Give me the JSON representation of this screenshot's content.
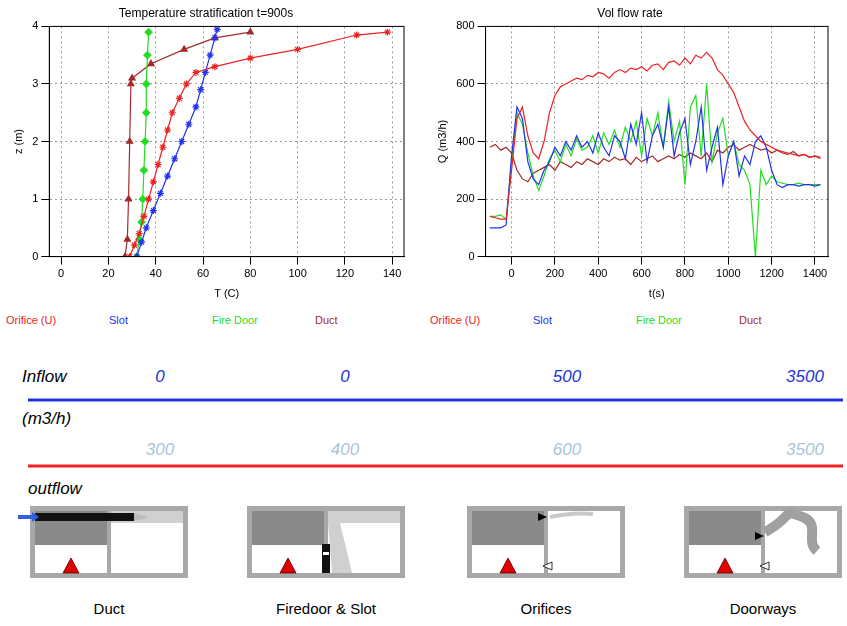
{
  "chart_data": [
    {
      "type": "line",
      "title": "Temperature stratification t=900s",
      "x_label": "T (C)",
      "y_label": "z (m)",
      "xlim": [
        -5,
        145
      ],
      "xticks": [
        0,
        20,
        40,
        60,
        80,
        100,
        120,
        140
      ],
      "ylim": [
        0,
        4
      ],
      "yticks": [
        0,
        1,
        2,
        3,
        4
      ],
      "grid": true,
      "legend": "bottom",
      "series": [
        {
          "name": "Orifice (U)",
          "color": "#ee2222",
          "marker": "star",
          "line_style": "solid",
          "x": [
            29,
            31,
            33,
            35,
            37,
            39,
            41,
            43,
            45,
            47,
            50,
            53,
            57,
            65,
            80,
            100,
            125,
            138
          ],
          "values": [
            0,
            0.2,
            0.4,
            0.7,
            1.0,
            1.3,
            1.6,
            1.9,
            2.2,
            2.5,
            2.75,
            3.0,
            3.2,
            3.3,
            3.45,
            3.6,
            3.85,
            3.9
          ]
        },
        {
          "name": "Slot",
          "color": "#2233ee",
          "marker": "star",
          "line_style": "solid",
          "x": [
            32,
            34,
            36,
            39,
            42,
            45,
            48,
            51,
            54,
            57,
            59,
            61,
            63,
            65,
            66
          ],
          "values": [
            0,
            0.25,
            0.5,
            0.8,
            1.1,
            1.4,
            1.7,
            2.0,
            2.3,
            2.6,
            2.9,
            3.2,
            3.5,
            3.8,
            3.95
          ]
        },
        {
          "name": "Fire Door",
          "color": "#22dd22",
          "marker": "diamond",
          "line_style": "solid",
          "x": [
            32,
            33,
            34,
            34.5,
            35,
            35.5,
            36,
            36,
            36.5,
            37
          ],
          "values": [
            0,
            0.3,
            0.6,
            1,
            1.5,
            2,
            2.5,
            3,
            3.5,
            3.9
          ]
        },
        {
          "name": "Duct",
          "color": "#a52a2a",
          "marker": "triangle",
          "line_style": "solid",
          "x": [
            27,
            28,
            28.5,
            29,
            29.5,
            30,
            38,
            52,
            65,
            80
          ],
          "values": [
            0,
            0.3,
            1,
            2,
            3,
            3.1,
            3.35,
            3.6,
            3.8,
            3.9
          ]
        }
      ]
    },
    {
      "type": "line",
      "title": "Vol flow rate",
      "x_label": "t(s)",
      "y_label": "Q (m3/h)",
      "xlim": [
        -120,
        1460
      ],
      "xticks": [
        0,
        200,
        400,
        600,
        800,
        1000,
        1200,
        1400
      ],
      "ylim": [
        0,
        800
      ],
      "yticks": [
        0,
        200,
        400,
        600,
        800
      ],
      "grid": true,
      "legend": "bottom",
      "x": [
        -100,
        -75,
        -50,
        -25,
        0,
        25,
        50,
        75,
        100,
        125,
        150,
        175,
        200,
        225,
        250,
        275,
        300,
        325,
        350,
        375,
        400,
        425,
        450,
        475,
        500,
        525,
        550,
        575,
        600,
        625,
        650,
        675,
        700,
        725,
        750,
        775,
        800,
        825,
        850,
        875,
        900,
        925,
        950,
        975,
        1000,
        1025,
        1050,
        1075,
        1100,
        1125,
        1150,
        1175,
        1200,
        1225,
        1250,
        1275,
        1300,
        1325,
        1350,
        1375,
        1400,
        1425
      ],
      "series": [
        {
          "name": "Orifice (U)",
          "color": "#ee2222",
          "marker": "none",
          "line_style": "solid",
          "values": [
            140,
            135,
            130,
            130,
            300,
            480,
            520,
            420,
            360,
            340,
            400,
            500,
            560,
            590,
            600,
            610,
            620,
            615,
            630,
            625,
            640,
            635,
            620,
            640,
            650,
            640,
            655,
            650,
            660,
            645,
            665,
            670,
            650,
            675,
            680,
            665,
            690,
            670,
            700,
            690,
            710,
            690,
            650,
            630,
            600,
            570,
            520,
            470,
            440,
            420,
            400,
            390,
            380,
            370,
            365,
            360,
            355,
            350,
            355,
            345,
            350,
            340
          ]
        },
        {
          "name": "Slot",
          "color": "#2233ee",
          "marker": "none",
          "line_style": "solid",
          "values": [
            100,
            100,
            100,
            110,
            350,
            520,
            480,
            330,
            270,
            250,
            300,
            330,
            380,
            350,
            400,
            370,
            420,
            380,
            400,
            360,
            430,
            380,
            350,
            420,
            400,
            340,
            460,
            390,
            500,
            330,
            420,
            460,
            380,
            520,
            350,
            430,
            480,
            320,
            400,
            520,
            300,
            380,
            450,
            250,
            350,
            400,
            280,
            350,
            320,
            400,
            420,
            380,
            300,
            250,
            240,
            250,
            250,
            245,
            250,
            250,
            245,
            250
          ]
        },
        {
          "name": "Fire Door",
          "color": "#22dd22",
          "marker": "none",
          "line_style": "solid",
          "values": [
            140,
            140,
            145,
            130,
            330,
            500,
            460,
            360,
            280,
            230,
            280,
            340,
            370,
            330,
            390,
            350,
            410,
            370,
            380,
            420,
            360,
            430,
            390,
            440,
            380,
            450,
            400,
            470,
            350,
            480,
            420,
            500,
            380,
            540,
            400,
            470,
            250,
            520,
            560,
            350,
            600,
            330,
            430,
            480,
            350,
            400,
            320,
            300,
            250,
            0,
            300,
            250,
            280,
            260,
            255,
            250,
            250,
            255,
            250,
            250,
            250,
            250
          ]
        },
        {
          "name": "Duct",
          "color": "#a52a2a",
          "marker": "none",
          "line_style": "solid",
          "values": [
            380,
            390,
            370,
            380,
            360,
            300,
            270,
            260,
            290,
            300,
            310,
            320,
            300,
            330,
            320,
            310,
            330,
            320,
            340,
            330,
            320,
            340,
            330,
            345,
            335,
            340,
            320,
            345,
            330,
            340,
            350,
            330,
            340,
            350,
            340,
            355,
            345,
            360,
            350,
            340,
            360,
            330,
            370,
            360,
            380,
            390,
            370,
            380,
            390,
            380,
            370,
            375,
            360,
            370,
            360,
            355,
            365,
            350,
            355,
            345,
            350,
            345
          ]
        }
      ]
    }
  ],
  "diagram": {
    "inflow": {
      "label": "Inflow",
      "unit": "(m3/h)",
      "color": "#2233dd",
      "values": [
        0,
        0,
        500,
        3500
      ]
    },
    "outflow": {
      "label": "outflow",
      "color": "#ee2222",
      "values": [
        300,
        400,
        600,
        3500
      ]
    },
    "panels": [
      "Duct",
      "Firedoor & Slot",
      "Orifices",
      "Doorways"
    ]
  }
}
